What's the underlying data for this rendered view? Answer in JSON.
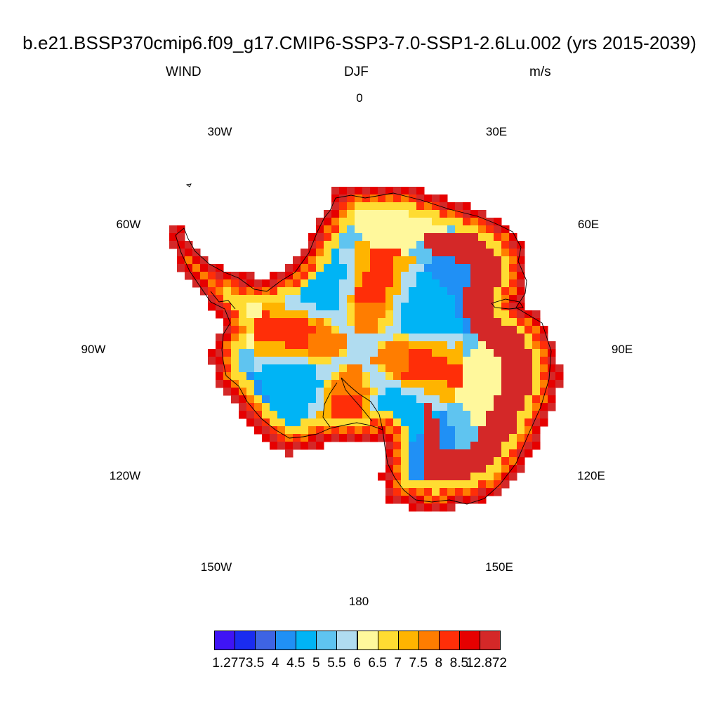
{
  "title": "b.e21.BSSP370cmip6.f09_g17.CMIP6-SSP3-7.0-SSP1-2.6Lu.002 (yrs 2015-2039)",
  "variable": "WIND",
  "season": "DJF",
  "units": "m/s",
  "longitude_labels": [
    "0",
    "30E",
    "60E",
    "90E",
    "120E",
    "150E",
    "180",
    "150W",
    "120W",
    "90W",
    "60W",
    "30W"
  ],
  "colorbar": {
    "colors": [
      "#3f14f5",
      "#1a2cf0",
      "#3e64e4",
      "#2090f5",
      "#00b4f5",
      "#5fc4f0",
      "#b0dcf0",
      "#fff89c",
      "#ffdc32",
      "#ffb400",
      "#ff7d00",
      "#ff2e08",
      "#e60000",
      "#d42828"
    ],
    "labels": [
      "1.277",
      "3.5",
      "4",
      "4.5",
      "5",
      "5.5",
      "6",
      "6.5",
      "7",
      "7.5",
      "8",
      "8.5",
      "12.872"
    ]
  }
}
